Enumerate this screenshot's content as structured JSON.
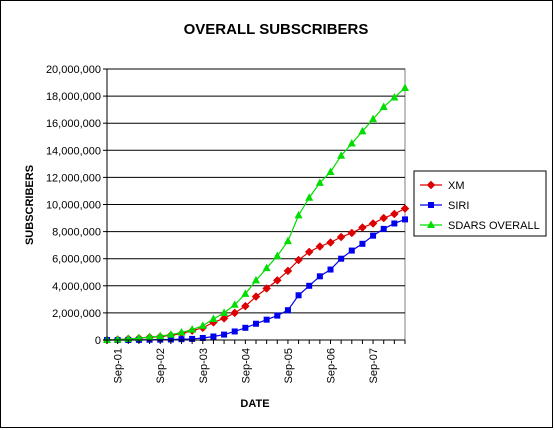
{
  "chart_data": {
    "type": "line",
    "title": "OVERALL SUBSCRIBERS",
    "xlabel": "DATE",
    "ylabel": "SUBSCRIBERS",
    "ylim": [
      0,
      20000000
    ],
    "yticks": [
      "0",
      "2,000,000",
      "4,000,000",
      "6,000,000",
      "8,000,000",
      "10,000,000",
      "12,000,000",
      "14,000,000",
      "16,000,000",
      "18,000,000",
      "20,000,000"
    ],
    "xticks": [
      "Sep-01",
      "Sep-02",
      "Sep-03",
      "Sep-04",
      "Sep-05",
      "Sep-06",
      "Sep-07"
    ],
    "x": [
      "Jun-01",
      "Sep-01",
      "Dec-01",
      "Mar-02",
      "Jun-02",
      "Sep-02",
      "Dec-02",
      "Mar-03",
      "Jun-03",
      "Sep-03",
      "Dec-03",
      "Mar-04",
      "Jun-04",
      "Sep-04",
      "Dec-04",
      "Mar-05",
      "Jun-05",
      "Sep-05",
      "Dec-05",
      "Mar-06",
      "Jun-06",
      "Sep-06",
      "Dec-06",
      "Mar-07",
      "Jun-07",
      "Sep-07",
      "Dec-07",
      "Mar-08",
      "Jun-08"
    ],
    "grid": "horizontal",
    "legend": "right",
    "series": [
      {
        "name": "XM",
        "color": "#dd0000",
        "marker": "diamond",
        "values": [
          0,
          30000,
          80000,
          130000,
          200000,
          250000,
          350000,
          480000,
          690000,
          900000,
          1300000,
          1600000,
          2000000,
          2500000,
          3200000,
          3800000,
          4400000,
          5100000,
          5900000,
          6500000,
          6900000,
          7200000,
          7600000,
          7900000,
          8300000,
          8600000,
          9000000,
          9300000,
          9700000
        ]
      },
      {
        "name": "SIRI",
        "color": "#0000ee",
        "marker": "square",
        "values": [
          0,
          0,
          0,
          10000,
          20000,
          30000,
          40000,
          60000,
          80000,
          150000,
          260000,
          400000,
          630000,
          900000,
          1200000,
          1500000,
          1800000,
          2200000,
          3300000,
          4000000,
          4700000,
          5200000,
          6000000,
          6600000,
          7100000,
          7700000,
          8200000,
          8600000,
          8900000
        ]
      },
      {
        "name": "SDARS OVERALL",
        "color": "#00dd00",
        "marker": "triangle",
        "values": [
          0,
          30000,
          80000,
          140000,
          220000,
          290000,
          400000,
          550000,
          770000,
          1050000,
          1550000,
          2000000,
          2600000,
          3400000,
          4400000,
          5300000,
          6200000,
          7300000,
          9200000,
          10500000,
          11600000,
          12400000,
          13600000,
          14500000,
          15400000,
          16300000,
          17200000,
          17900000,
          18600000
        ]
      }
    ]
  }
}
